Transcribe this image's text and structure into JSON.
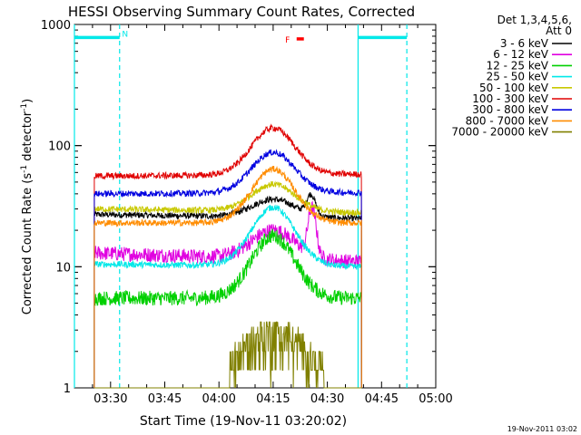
{
  "chart_data": {
    "type": "line",
    "title": "HESSI Observing Summary Count Rates, Corrected",
    "xlabel": "Start Time (19-Nov-11 03:20:02)",
    "ylabel_main": "Corrected Count Rate (s",
    "ylabel_exp1": "-1",
    "ylabel_mid": " detector",
    "ylabel_exp2": "-1",
    "ylabel_end": ")",
    "yscale": "log",
    "ylim": [
      1,
      1000
    ],
    "xlim_minutes": [
      0,
      100
    ],
    "x_ticks": [
      {
        "label": "03:30",
        "t": 10
      },
      {
        "label": "03:45",
        "t": 25
      },
      {
        "label": "04:00",
        "t": 40
      },
      {
        "label": "04:15",
        "t": 55
      },
      {
        "label": "04:30",
        "t": 70
      },
      {
        "label": "04:45",
        "t": 85
      },
      {
        "label": "05:00",
        "t": 100
      }
    ],
    "y_ticks": [
      {
        "label": "1",
        "v": 1
      },
      {
        "label": "10",
        "v": 10
      },
      {
        "label": "100",
        "v": 100
      },
      {
        "label": "1000",
        "v": 1000
      }
    ],
    "legend_header": [
      "Det 1,3,4,5,6,",
      "Att 0"
    ],
    "legend_placement": "right",
    "series": [
      {
        "name": "3 - 6 keV",
        "color": "#000000",
        "start": 27,
        "end": 25,
        "peak": 36,
        "peak_t": 55
      },
      {
        "name": "6 - 12 keV",
        "color": "#e000e0",
        "start": 13,
        "end": 11,
        "peak": 20,
        "peak_t": 55
      },
      {
        "name": "12 - 25 keV",
        "color": "#00d000",
        "start": 5.5,
        "end": 5.5,
        "peak": 18,
        "peak_t": 55
      },
      {
        "name": "25 - 50 keV",
        "color": "#00e8e8",
        "start": 10.5,
        "end": 10,
        "peak": 31,
        "peak_t": 55
      },
      {
        "name": "50 - 100 keV",
        "color": "#c8c800",
        "start": 30,
        "end": 28,
        "peak": 48,
        "peak_t": 55
      },
      {
        "name": "100 - 300 keV",
        "color": "#e00000",
        "start": 56,
        "end": 58,
        "peak": 140,
        "peak_t": 55
      },
      {
        "name": "300 - 800 keV",
        "color": "#0000e0",
        "start": 40,
        "end": 41,
        "peak": 88,
        "peak_t": 55
      },
      {
        "name": "800 - 7000 keV",
        "color": "#ff8c00",
        "start": 23,
        "end": 23,
        "peak": 64,
        "peak_t": 55
      },
      {
        "name": "7000 - 20000 keV",
        "color": "#808000",
        "start": 1,
        "end": 1,
        "peak": 3.5,
        "peak_t": 55
      }
    ],
    "data_start_t": 5.5,
    "data_end_t": 79.5,
    "flag_bars": [
      {
        "label": "N",
        "color": "#00e8e8",
        "segments": [
          [
            0,
            12.5
          ],
          [
            78.5,
            92
          ]
        ],
        "y_value": 780
      },
      {
        "label": "F",
        "color": "#ff0000",
        "segments": [
          [
            61.5,
            63.5
          ]
        ],
        "y_value": 760
      }
    ],
    "vertical_lines": [
      {
        "t": 0,
        "style": "solid",
        "color": "#00e8e8"
      },
      {
        "t": 12.5,
        "style": "dashed",
        "color": "#00e8e8"
      },
      {
        "t": 78.5,
        "style": "solid",
        "color": "#00e8e8"
      },
      {
        "t": 92,
        "style": "dashed",
        "color": "#00e8e8"
      }
    ]
  },
  "footer_timestamp": "19-Nov-2011 03:02"
}
